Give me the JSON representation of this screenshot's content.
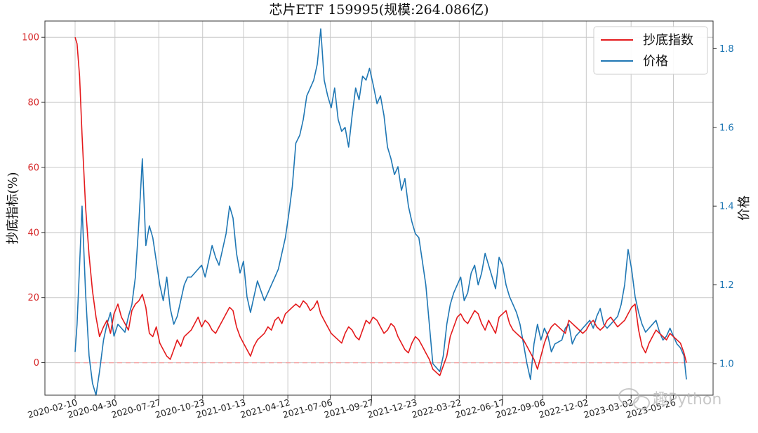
{
  "chart_data": {
    "type": "line",
    "title": "芯片ETF  159995(规模:264.086亿)",
    "ylabel_left": "抄底指标(%)",
    "ylabel_right": "价格",
    "x_ticks": [
      "2020-02-10",
      "2020-04-30",
      "2020-07-27",
      "2020-10-23",
      "2021-01-13",
      "2021-04-12",
      "2021-07-06",
      "2021-09-27",
      "2021-12-23",
      "2022-03-22",
      "2022-06-17",
      "2022-09-06",
      "2022-12-02",
      "2023-03-02",
      "2023-05-26"
    ],
    "y_left_ticks": [
      "0",
      "20",
      "40",
      "60",
      "80",
      "100"
    ],
    "y_right_ticks": [
      "1.0",
      "1.2",
      "1.4",
      "1.6",
      "1.8"
    ],
    "ylim_left": [
      -10,
      105
    ],
    "ylim_right": [
      0.92,
      1.87
    ],
    "grid": true,
    "legend_position": "top-right",
    "reference_line": {
      "y": 0,
      "style": "dashed",
      "color": "#f4a5a5"
    },
    "series": [
      {
        "name": "抄底指数",
        "axis": "left",
        "color": "#e41a1c",
        "x": [
          "2020-02-10",
          "2020-02-14",
          "2020-02-19",
          "2020-02-24",
          "2020-03-02",
          "2020-03-09",
          "2020-03-16",
          "2020-03-23",
          "2020-03-30",
          "2020-04-07",
          "2020-04-14",
          "2020-04-21",
          "2020-04-28",
          "2020-05-06",
          "2020-05-13",
          "2020-05-20",
          "2020-05-27",
          "2020-06-03",
          "2020-06-10",
          "2020-06-17",
          "2020-06-24",
          "2020-07-01",
          "2020-07-08",
          "2020-07-15",
          "2020-07-22",
          "2020-07-29",
          "2020-08-05",
          "2020-08-12",
          "2020-08-19",
          "2020-08-26",
          "2020-09-02",
          "2020-09-09",
          "2020-09-16",
          "2020-09-23",
          "2020-09-30",
          "2020-10-14",
          "2020-10-21",
          "2020-10-28",
          "2020-11-04",
          "2020-11-11",
          "2020-11-18",
          "2020-11-25",
          "2020-12-02",
          "2020-12-09",
          "2020-12-16",
          "2020-12-23",
          "2020-12-30",
          "2021-01-06",
          "2021-01-13",
          "2021-01-20",
          "2021-01-27",
          "2021-02-03",
          "2021-02-10",
          "2021-02-24",
          "2021-03-03",
          "2021-03-10",
          "2021-03-17",
          "2021-03-24",
          "2021-03-31",
          "2021-04-07",
          "2021-04-14",
          "2021-04-21",
          "2021-04-28",
          "2021-05-06",
          "2021-05-13",
          "2021-05-20",
          "2021-05-27",
          "2021-06-03",
          "2021-06-10",
          "2021-06-17",
          "2021-06-24",
          "2021-07-01",
          "2021-07-08",
          "2021-07-15",
          "2021-07-22",
          "2021-07-29",
          "2021-08-05",
          "2021-08-12",
          "2021-08-19",
          "2021-08-26",
          "2021-09-02",
          "2021-09-09",
          "2021-09-16",
          "2021-09-23",
          "2021-09-30",
          "2021-10-08",
          "2021-10-15",
          "2021-10-22",
          "2021-10-29",
          "2021-11-05",
          "2021-11-12",
          "2021-11-19",
          "2021-11-26",
          "2021-12-03",
          "2021-12-10",
          "2021-12-17",
          "2021-12-24",
          "2021-12-31",
          "2022-01-07",
          "2022-01-14",
          "2022-01-21",
          "2022-01-28",
          "2022-02-11",
          "2022-02-18",
          "2022-02-25",
          "2022-03-04",
          "2022-03-11",
          "2022-03-18",
          "2022-03-25",
          "2022-04-01",
          "2022-04-08",
          "2022-04-15",
          "2022-04-22",
          "2022-04-29",
          "2022-05-06",
          "2022-05-13",
          "2022-05-20",
          "2022-05-27",
          "2022-06-03",
          "2022-06-10",
          "2022-06-17",
          "2022-06-24",
          "2022-07-01",
          "2022-07-08",
          "2022-07-15",
          "2022-07-22",
          "2022-07-29",
          "2022-08-05",
          "2022-08-12",
          "2022-08-19",
          "2022-08-26",
          "2022-09-02",
          "2022-09-09",
          "2022-09-16",
          "2022-09-23",
          "2022-09-30",
          "2022-10-14",
          "2022-10-21",
          "2022-10-28",
          "2022-11-04",
          "2022-11-11",
          "2022-11-18",
          "2022-11-25",
          "2022-12-02",
          "2022-12-09",
          "2022-12-16",
          "2022-12-23",
          "2022-12-30",
          "2023-01-06",
          "2023-01-13",
          "2023-01-20",
          "2023-02-03",
          "2023-02-10",
          "2023-02-17",
          "2023-02-24",
          "2023-03-03",
          "2023-03-10",
          "2023-03-17",
          "2023-03-24",
          "2023-03-31",
          "2023-04-07",
          "2023-04-14",
          "2023-04-21",
          "2023-04-28",
          "2023-05-05",
          "2023-05-12",
          "2023-05-19",
          "2023-05-26",
          "2023-06-02",
          "2023-06-09",
          "2023-06-16",
          "2023-06-21"
        ],
        "values": [
          100,
          98,
          88,
          70,
          48,
          33,
          22,
          14,
          8,
          11,
          13,
          9,
          15,
          18,
          14,
          12,
          10,
          16,
          18,
          19,
          21,
          17,
          9,
          8,
          11,
          6,
          4,
          2,
          1,
          4,
          7,
          5,
          8,
          9,
          10,
          14,
          11,
          13,
          12,
          10,
          9,
          11,
          13,
          15,
          17,
          16,
          11,
          8,
          6,
          4,
          2,
          5,
          7,
          9,
          11,
          10,
          13,
          14,
          12,
          15,
          16,
          17,
          18,
          17,
          19,
          18,
          16,
          17,
          19,
          15,
          13,
          11,
          9,
          8,
          7,
          6,
          9,
          11,
          10,
          8,
          7,
          10,
          13,
          12,
          14,
          13,
          11,
          9,
          10,
          12,
          11,
          8,
          6,
          4,
          3,
          6,
          8,
          7,
          5,
          3,
          1,
          -2,
          -4,
          -1,
          2,
          8,
          11,
          14,
          15,
          13,
          12,
          14,
          16,
          15,
          12,
          10,
          13,
          11,
          9,
          14,
          15,
          16,
          12,
          10,
          9,
          8,
          7,
          5,
          3,
          1,
          -2,
          2,
          6,
          9,
          11,
          12,
          10,
          9,
          13,
          12,
          11,
          10,
          9,
          10,
          12,
          13,
          11,
          10,
          11,
          13,
          14,
          11,
          12,
          13,
          15,
          17,
          18,
          10,
          5,
          3,
          6,
          8,
          10,
          9,
          8,
          7,
          9,
          8,
          7,
          6,
          3,
          0
        ]
      },
      {
        "name": "价格",
        "axis": "right",
        "color": "#1f77b4",
        "x": [
          "2020-02-10",
          "2020-02-14",
          "2020-02-19",
          "2020-02-24",
          "2020-03-02",
          "2020-03-09",
          "2020-03-16",
          "2020-03-23",
          "2020-03-30",
          "2020-04-07",
          "2020-04-14",
          "2020-04-21",
          "2020-04-28",
          "2020-05-06",
          "2020-05-13",
          "2020-05-20",
          "2020-05-27",
          "2020-06-03",
          "2020-06-10",
          "2020-06-17",
          "2020-06-24",
          "2020-07-01",
          "2020-07-08",
          "2020-07-15",
          "2020-07-22",
          "2020-07-29",
          "2020-08-05",
          "2020-08-12",
          "2020-08-19",
          "2020-08-26",
          "2020-09-02",
          "2020-09-09",
          "2020-09-16",
          "2020-09-23",
          "2020-09-30",
          "2020-10-14",
          "2020-10-21",
          "2020-10-28",
          "2020-11-04",
          "2020-11-11",
          "2020-11-18",
          "2020-11-25",
          "2020-12-02",
          "2020-12-09",
          "2020-12-16",
          "2020-12-23",
          "2020-12-30",
          "2021-01-06",
          "2021-01-13",
          "2021-01-20",
          "2021-01-27",
          "2021-02-03",
          "2021-02-10",
          "2021-02-24",
          "2021-03-03",
          "2021-03-10",
          "2021-03-17",
          "2021-03-24",
          "2021-03-31",
          "2021-04-07",
          "2021-04-14",
          "2021-04-21",
          "2021-04-28",
          "2021-05-06",
          "2021-05-13",
          "2021-05-20",
          "2021-05-27",
          "2021-06-03",
          "2021-06-10",
          "2021-06-17",
          "2021-06-24",
          "2021-07-01",
          "2021-07-08",
          "2021-07-15",
          "2021-07-22",
          "2021-07-29",
          "2021-08-05",
          "2021-08-12",
          "2021-08-19",
          "2021-08-26",
          "2021-09-02",
          "2021-09-09",
          "2021-09-16",
          "2021-09-23",
          "2021-09-30",
          "2021-10-08",
          "2021-10-15",
          "2021-10-22",
          "2021-10-29",
          "2021-11-05",
          "2021-11-12",
          "2021-11-19",
          "2021-11-26",
          "2021-12-03",
          "2021-12-10",
          "2021-12-17",
          "2021-12-24",
          "2021-12-31",
          "2022-01-07",
          "2022-01-14",
          "2022-01-21",
          "2022-01-28",
          "2022-02-11",
          "2022-02-18",
          "2022-02-25",
          "2022-03-04",
          "2022-03-11",
          "2022-03-18",
          "2022-03-25",
          "2022-04-01",
          "2022-04-08",
          "2022-04-15",
          "2022-04-22",
          "2022-04-29",
          "2022-05-06",
          "2022-05-13",
          "2022-05-20",
          "2022-05-27",
          "2022-06-03",
          "2022-06-10",
          "2022-06-17",
          "2022-06-24",
          "2022-07-01",
          "2022-07-08",
          "2022-07-15",
          "2022-07-22",
          "2022-07-29",
          "2022-08-05",
          "2022-08-12",
          "2022-08-19",
          "2022-08-26",
          "2022-09-02",
          "2022-09-09",
          "2022-09-16",
          "2022-09-23",
          "2022-09-30",
          "2022-10-14",
          "2022-10-21",
          "2022-10-28",
          "2022-11-04",
          "2022-11-11",
          "2022-11-18",
          "2022-11-25",
          "2022-12-02",
          "2022-12-09",
          "2022-12-16",
          "2022-12-23",
          "2022-12-30",
          "2023-01-06",
          "2023-01-13",
          "2023-01-20",
          "2023-02-03",
          "2023-02-10",
          "2023-02-17",
          "2023-02-24",
          "2023-03-03",
          "2023-03-10",
          "2023-03-17",
          "2023-03-24",
          "2023-03-31",
          "2023-04-07",
          "2023-04-14",
          "2023-04-21",
          "2023-04-28",
          "2023-05-05",
          "2023-05-12",
          "2023-05-19",
          "2023-05-26",
          "2023-06-02",
          "2023-06-09",
          "2023-06-16",
          "2023-06-21"
        ],
        "values": [
          1.03,
          1.1,
          1.25,
          1.4,
          1.18,
          1.02,
          0.95,
          0.92,
          0.98,
          1.06,
          1.1,
          1.13,
          1.07,
          1.1,
          1.09,
          1.08,
          1.12,
          1.15,
          1.22,
          1.36,
          1.52,
          1.3,
          1.35,
          1.32,
          1.26,
          1.2,
          1.16,
          1.22,
          1.14,
          1.1,
          1.12,
          1.16,
          1.2,
          1.22,
          1.22,
          1.24,
          1.25,
          1.22,
          1.26,
          1.3,
          1.27,
          1.25,
          1.29,
          1.33,
          1.4,
          1.37,
          1.28,
          1.23,
          1.26,
          1.17,
          1.13,
          1.17,
          1.21,
          1.16,
          1.18,
          1.2,
          1.22,
          1.24,
          1.28,
          1.32,
          1.38,
          1.45,
          1.56,
          1.58,
          1.62,
          1.68,
          1.7,
          1.72,
          1.76,
          1.85,
          1.72,
          1.68,
          1.65,
          1.7,
          1.62,
          1.59,
          1.6,
          1.55,
          1.63,
          1.7,
          1.67,
          1.73,
          1.72,
          1.75,
          1.71,
          1.66,
          1.68,
          1.63,
          1.55,
          1.52,
          1.48,
          1.5,
          1.44,
          1.47,
          1.4,
          1.36,
          1.33,
          1.32,
          1.26,
          1.2,
          1.1,
          1.0,
          0.98,
          1.02,
          1.1,
          1.15,
          1.18,
          1.2,
          1.22,
          1.16,
          1.18,
          1.23,
          1.25,
          1.2,
          1.23,
          1.28,
          1.25,
          1.22,
          1.19,
          1.27,
          1.25,
          1.2,
          1.17,
          1.15,
          1.13,
          1.1,
          1.05,
          1.0,
          0.96,
          1.05,
          1.1,
          1.06,
          1.09,
          1.07,
          1.03,
          1.05,
          1.06,
          1.09,
          1.1,
          1.05,
          1.07,
          1.08,
          1.09,
          1.1,
          1.11,
          1.09,
          1.12,
          1.14,
          1.1,
          1.09,
          1.1,
          1.12,
          1.15,
          1.2,
          1.29,
          1.24,
          1.17,
          1.13,
          1.1,
          1.08,
          1.09,
          1.1,
          1.11,
          1.08,
          1.06,
          1.07,
          1.09,
          1.07,
          1.05,
          1.04,
          1.02,
          0.96
        ]
      }
    ]
  },
  "legend": {
    "items": [
      {
        "label": "抄底指数",
        "color": "#e41a1c"
      },
      {
        "label": "价格",
        "color": "#1f77b4"
      }
    ]
  },
  "watermark": {
    "text": "趣Python",
    "icon": "wechat-icon"
  }
}
